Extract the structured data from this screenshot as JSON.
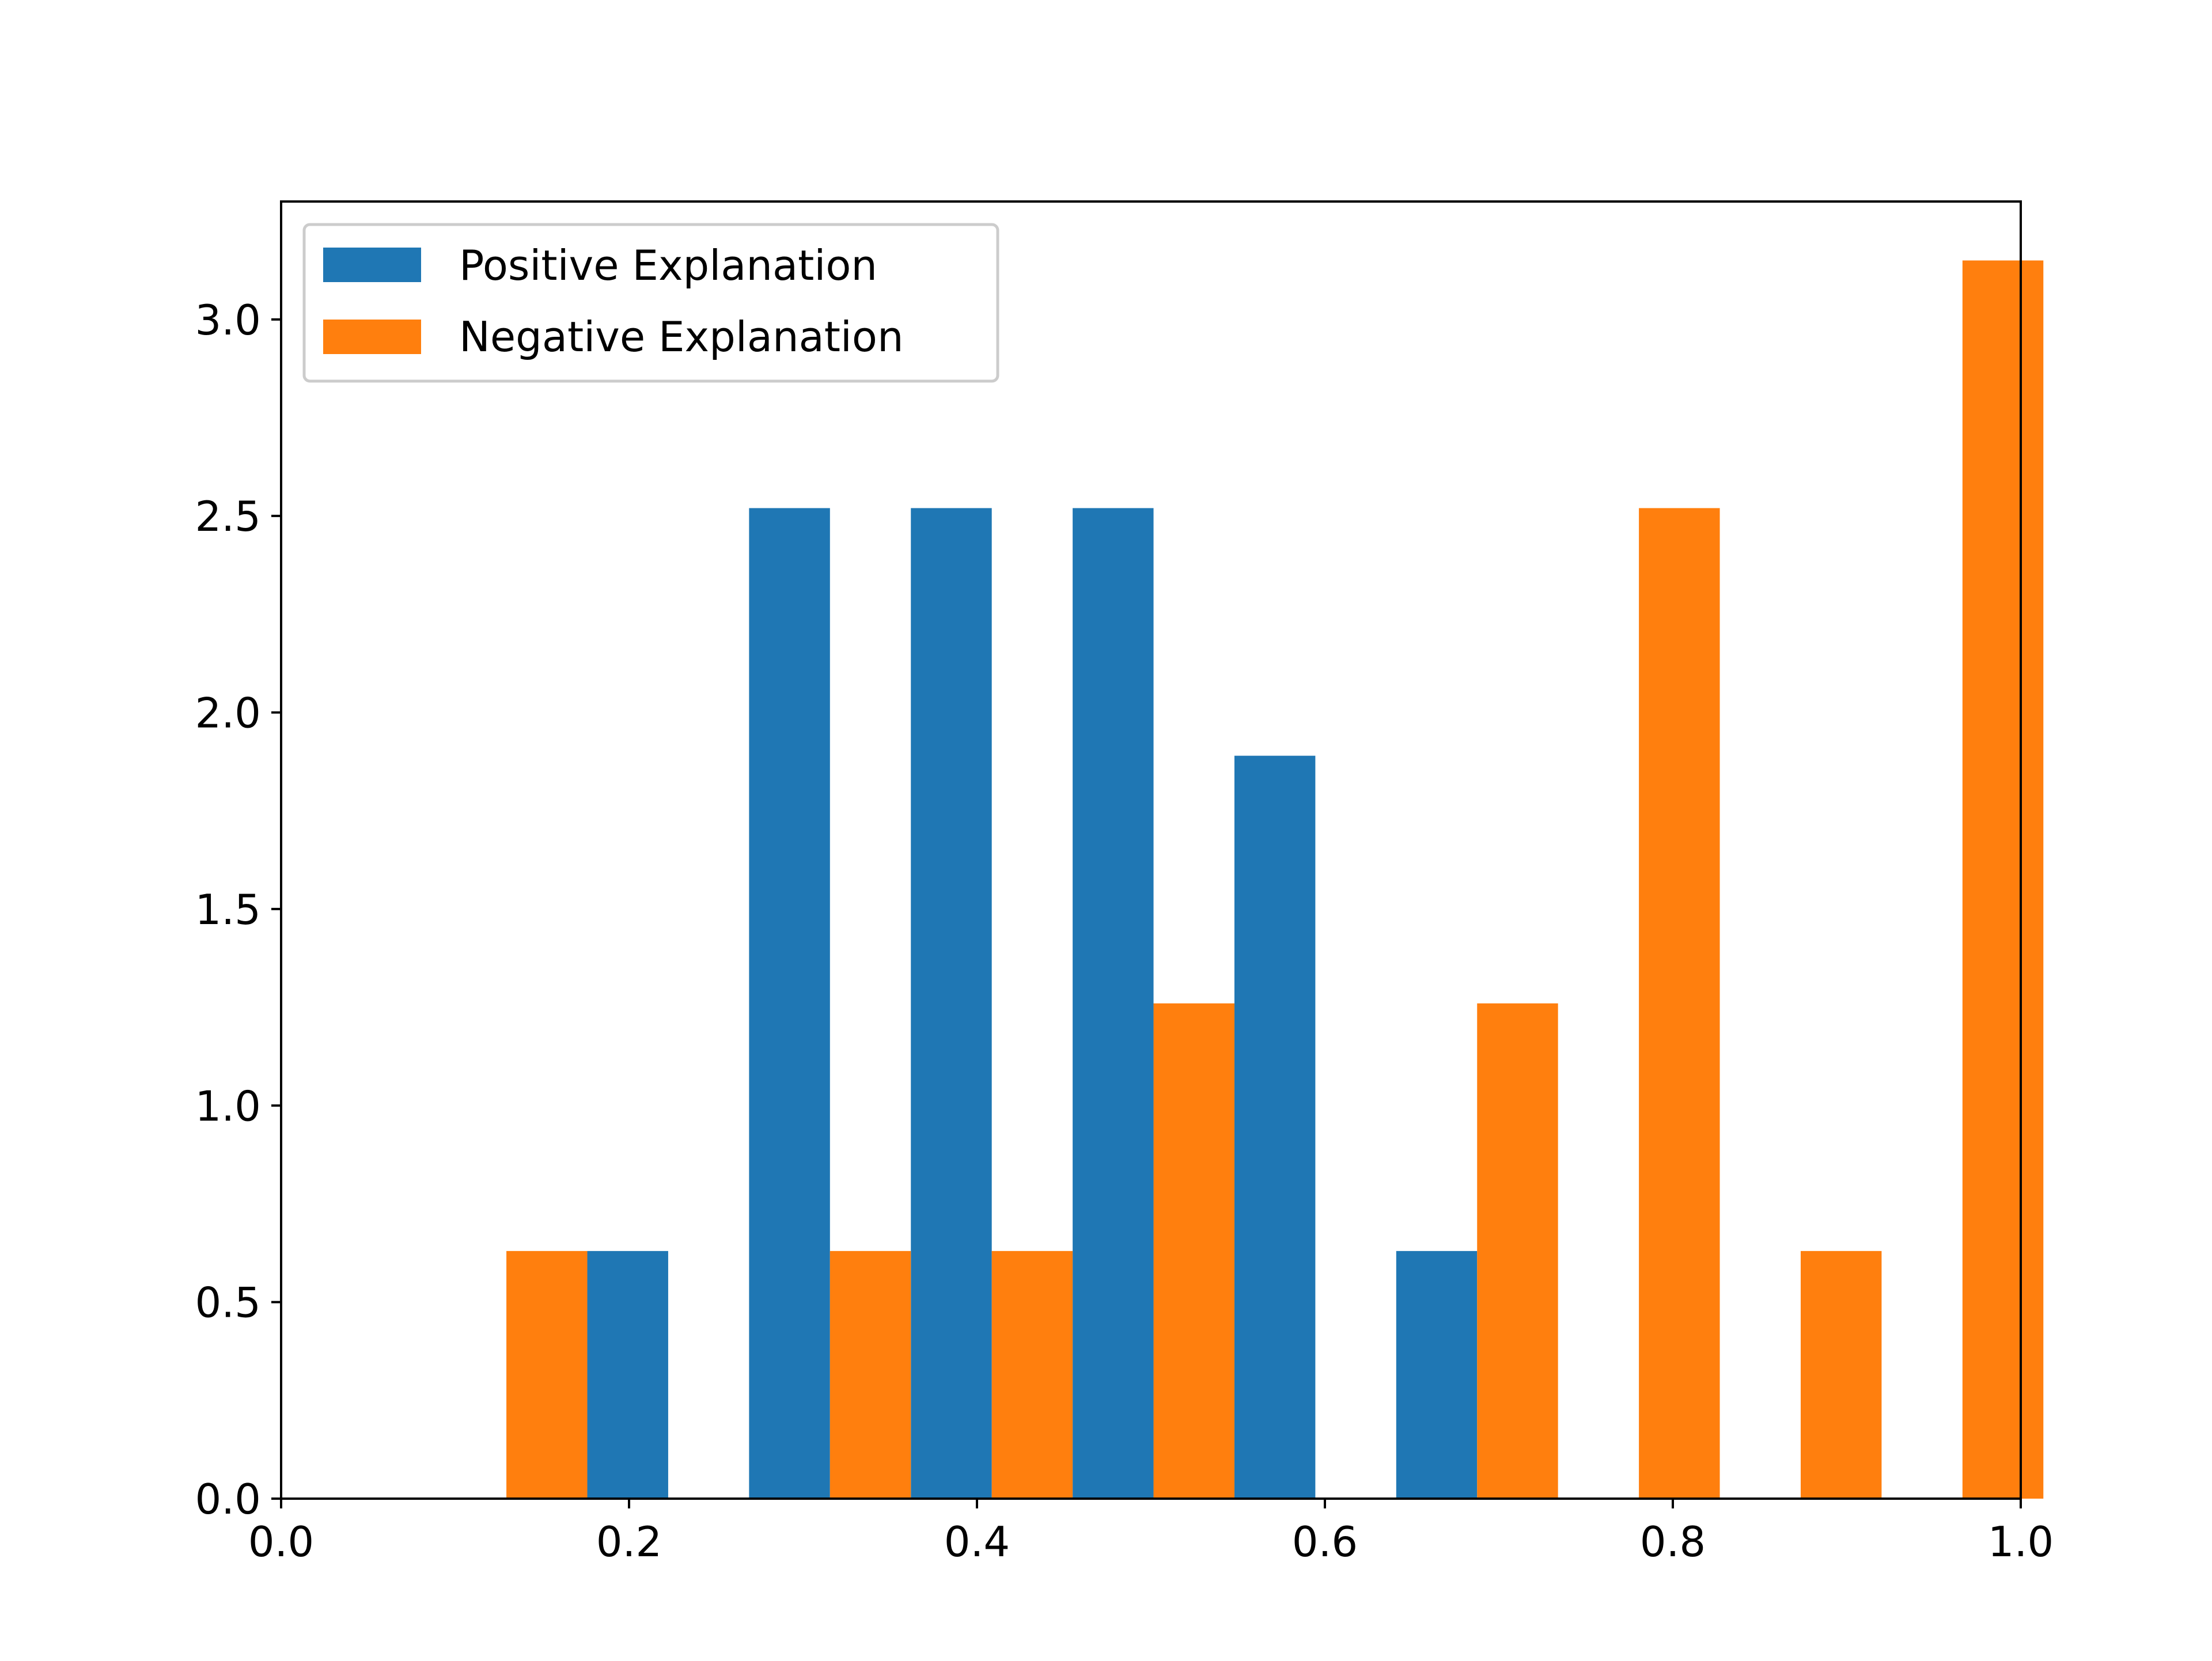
{
  "chart_data": {
    "type": "bar",
    "title": "",
    "xlabel": "",
    "ylabel": "",
    "xlim": [
      0.0,
      1.0
    ],
    "ylim": [
      0.0,
      3.3
    ],
    "x_ticks": [
      0.0,
      0.2,
      0.4,
      0.6,
      0.8,
      1.0
    ],
    "x_tick_labels": [
      "0.0",
      "0.2",
      "0.4",
      "0.6",
      "0.8",
      "1.0"
    ],
    "y_ticks": [
      0.0,
      0.5,
      1.0,
      1.5,
      2.0,
      2.5,
      3.0
    ],
    "y_tick_labels": [
      "0.0",
      "0.5",
      "1.0",
      "1.5",
      "2.0",
      "2.5",
      "3.0"
    ],
    "grid": false,
    "legend_position": "top-left",
    "bin_edges": [
      0.083,
      0.176,
      0.269,
      0.362,
      0.455,
      0.548,
      0.641,
      0.734,
      0.827,
      0.92,
      1.013
    ],
    "series": [
      {
        "name": "Positive Explanation",
        "color": "#1f77b4",
        "values": [
          0,
          0.63,
          2.52,
          2.52,
          2.52,
          1.89,
          0.63,
          0,
          0,
          0
        ]
      },
      {
        "name": "Negative Explanation",
        "color": "#ff7f0e",
        "values": [
          0.63,
          0,
          0.63,
          0.63,
          1.26,
          0,
          1.26,
          2.52,
          0.63,
          3.15
        ]
      }
    ]
  }
}
